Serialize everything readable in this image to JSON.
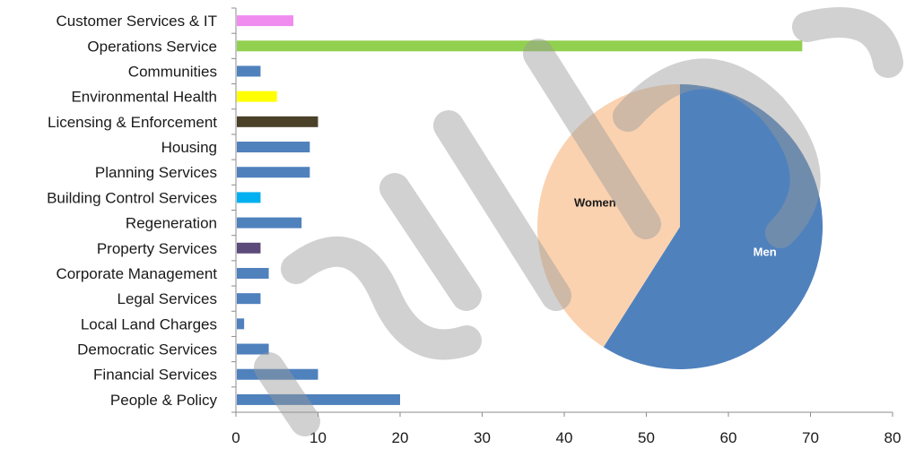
{
  "watermark": "ditto",
  "chart_data": [
    {
      "type": "bar",
      "orientation": "horizontal",
      "categories": [
        "Customer Services & IT",
        "Operations Service",
        "Communities",
        "Environmental Health",
        "Licensing & Enforcement",
        "Housing",
        "Planning Services",
        "Building Control Services",
        "Regeneration",
        "Property Services",
        "Corporate Management",
        "Legal Services",
        "Local Land Charges",
        "Democratic Services",
        "Financial Services",
        "People & Policy"
      ],
      "values": [
        7,
        69,
        3,
        5,
        10,
        9,
        9,
        3,
        8,
        3,
        4,
        3,
        1,
        4,
        10,
        20
      ],
      "colors": [
        "#f08cf0",
        "#92d050",
        "#4f81bd",
        "#ffff00",
        "#4a4128",
        "#4f81bd",
        "#4f81bd",
        "#00b0f0",
        "#4f81bd",
        "#5c4a7a",
        "#4f81bd",
        "#4f81bd",
        "#4f81bd",
        "#4f81bd",
        "#4f81bd",
        "#4f81bd"
      ],
      "xlim": [
        0,
        80
      ],
      "xticks": [
        0,
        10,
        20,
        30,
        40,
        50,
        60,
        70,
        80
      ],
      "title": "",
      "xlabel": "",
      "ylabel": "",
      "grid": false
    },
    {
      "type": "pie",
      "labels": [
        "Men",
        "Women"
      ],
      "values": [
        59,
        41
      ],
      "colors": [
        "#4f81bd",
        "#fad2b0"
      ],
      "label_colors": [
        "#ffffff",
        "#1a1a1a"
      ]
    }
  ]
}
